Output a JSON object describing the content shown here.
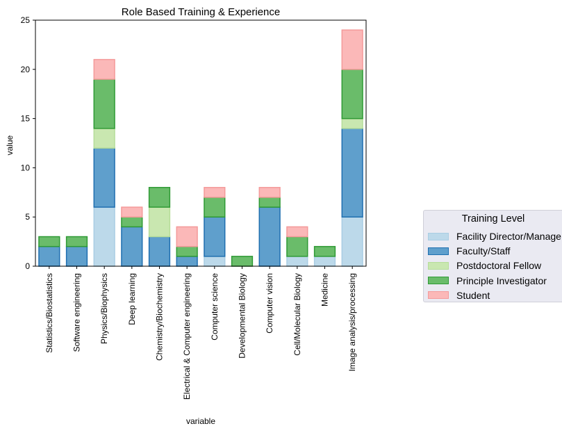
{
  "chart_data": {
    "type": "bar",
    "stacked": true,
    "title": "Role Based Training & Experience",
    "xlabel": "variable",
    "ylabel": "value",
    "ylim": [
      0,
      25
    ],
    "yticks": [
      0,
      5,
      10,
      15,
      20,
      25
    ],
    "grid": false,
    "legend_position": "right",
    "categories": [
      "Statistics/Biostatistics",
      "Software engineering",
      "Physics/Biophysics",
      "Deep learning",
      "Chemistry/Biochemistry",
      "Electrical & Computer engineering",
      "Computer science",
      "Developmental Biology",
      "Computer vision",
      "Cell/Molecular Biology",
      "Medicine",
      "Image analysis/processing"
    ],
    "legend_title": "Training Level",
    "series": [
      {
        "name": "Facility Director/Manager",
        "legend_label": "Facility Director/Manage",
        "color": "#bcd9ea",
        "edge": "#a9cde3",
        "values": [
          0,
          0,
          6,
          0,
          0,
          0,
          1,
          0,
          0,
          1,
          1,
          5
        ]
      },
      {
        "name": "Faculty/Staff",
        "legend_label": "Faculty/Staff",
        "color": "#5f9fcc",
        "edge": "#1f6fb0",
        "values": [
          2,
          2,
          6,
          4,
          3,
          1,
          4,
          0,
          6,
          0,
          0,
          9
        ]
      },
      {
        "name": "Postdoctoral Fellow",
        "legend_label": "Postdoctoral Fellow",
        "color": "#c9e7b0",
        "edge": "#b6dd99",
        "values": [
          0,
          0,
          2,
          0,
          3,
          0,
          0,
          0,
          0,
          0,
          0,
          1
        ]
      },
      {
        "name": "Principle Investigator",
        "legend_label": "Principle Investigator",
        "color": "#6abc6a",
        "edge": "#2f9a35",
        "values": [
          1,
          1,
          5,
          1,
          2,
          1,
          2,
          1,
          1,
          2,
          1,
          5
        ]
      },
      {
        "name": "Student",
        "legend_label": "Student",
        "color": "#fbb8b8",
        "edge": "#f49a9a",
        "values": [
          0,
          0,
          2,
          1,
          0,
          2,
          1,
          0,
          1,
          1,
          0,
          4
        ]
      }
    ]
  }
}
